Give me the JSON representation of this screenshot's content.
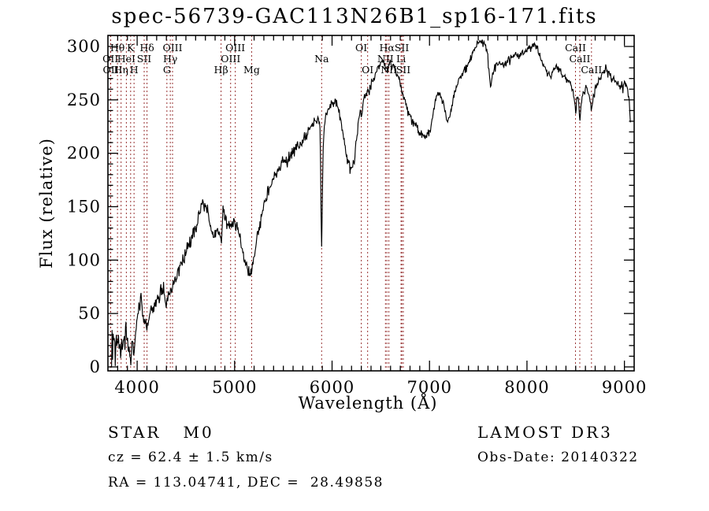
{
  "title": "spec-56739-GAC113N26B1_sp16-171.fits",
  "annotations": {
    "class_label": "STAR   M0",
    "cz": "cz = 62.4 ± 1.5 km/s",
    "radec": "RA = 113.04741, DEC =  28.49858",
    "survey": "LAMOST DR3",
    "obs_date": "Obs-Date: 20140322"
  },
  "chart_data": {
    "type": "line",
    "title": "spec-56739-GAC113N26B1_sp16-171.fits",
    "xlabel": "Wavelength (Å)",
    "ylabel": "Flux (relative)",
    "xlim": [
      3700,
      9100
    ],
    "ylim": [
      0,
      310
    ],
    "x_major_ticks": [
      4000,
      5000,
      6000,
      7000,
      8000,
      9000
    ],
    "x_minor_step": 100,
    "y_major_ticks": [
      0,
      50,
      100,
      150,
      200,
      250,
      300
    ],
    "y_minor_step": 10,
    "grid": false,
    "series_color": "#000000",
    "line_marker_color": "#993333",
    "spectral_lines": [
      {
        "label": "OII",
        "wavelength": 3726,
        "row": 2
      },
      {
        "label": "OII",
        "wavelength": 3729,
        "row": 3
      },
      {
        "label": "Hθ",
        "wavelength": 3798,
        "row": 1
      },
      {
        "label": "Hη",
        "wavelength": 3835,
        "row": 3
      },
      {
        "label": "HeI",
        "wavelength": 3889,
        "row": 2
      },
      {
        "label": "K",
        "wavelength": 3933,
        "row": 1
      },
      {
        "label": "H",
        "wavelength": 3968,
        "row": 3
      },
      {
        "label": "SII",
        "wavelength": 4072,
        "row": 2
      },
      {
        "label": "Hδ",
        "wavelength": 4101,
        "row": 1
      },
      {
        "label": "G",
        "wavelength": 4305,
        "row": 3
      },
      {
        "label": "Hγ",
        "wavelength": 4340,
        "row": 2
      },
      {
        "label": "OIII",
        "wavelength": 4363,
        "row": 1
      },
      {
        "label": "Hβ",
        "wavelength": 4861,
        "row": 3
      },
      {
        "label": "OIII",
        "wavelength": 4959,
        "row": 2
      },
      {
        "label": "OIII",
        "wavelength": 5007,
        "row": 1
      },
      {
        "label": "Mg",
        "wavelength": 5175,
        "row": 3
      },
      {
        "label": "Na",
        "wavelength": 5893,
        "row": 2
      },
      {
        "label": "OI",
        "wavelength": 6300,
        "row": 1
      },
      {
        "label": "OI",
        "wavelength": 6365,
        "row": 3
      },
      {
        "label": "NII",
        "wavelength": 6548,
        "row": 2
      },
      {
        "label": "Hα",
        "wavelength": 6563,
        "row": 1
      },
      {
        "label": "NII",
        "wavelength": 6583,
        "row": 3
      },
      {
        "label": "Li",
        "wavelength": 6708,
        "row": 2
      },
      {
        "label": "SII",
        "wavelength": 6716,
        "row": 1
      },
      {
        "label": "SII",
        "wavelength": 6731,
        "row": 3
      },
      {
        "label": "CaII",
        "wavelength": 8498,
        "row": 1
      },
      {
        "label": "CaII",
        "wavelength": 8542,
        "row": 2
      },
      {
        "label": "CaII",
        "wavelength": 8662,
        "row": 3
      }
    ],
    "noise_profile": [
      [
        3737,
        13
      ],
      [
        4200,
        10
      ],
      [
        4700,
        8
      ],
      [
        5300,
        7
      ],
      [
        5900,
        6
      ],
      [
        6600,
        5
      ],
      [
        7300,
        4
      ],
      [
        8200,
        4
      ],
      [
        9064,
        5
      ]
    ],
    "series": [
      {
        "name": "spectrum",
        "anchors": [
          [
            3737,
            2
          ],
          [
            3742,
            45
          ],
          [
            3747,
            10
          ],
          [
            3752,
            38
          ],
          [
            3757,
            15
          ],
          [
            3765,
            30
          ],
          [
            3775,
            10
          ],
          [
            3785,
            25
          ],
          [
            3795,
            18
          ],
          [
            3805,
            28
          ],
          [
            3815,
            14
          ],
          [
            3825,
            22
          ],
          [
            3835,
            10
          ],
          [
            3845,
            24
          ],
          [
            3855,
            18
          ],
          [
            3865,
            30
          ],
          [
            3875,
            24
          ],
          [
            3885,
            38
          ],
          [
            3895,
            26
          ],
          [
            3905,
            22
          ],
          [
            3915,
            14
          ],
          [
            3925,
            8
          ],
          [
            3935,
            6
          ],
          [
            3945,
            20
          ],
          [
            3955,
            24
          ],
          [
            3965,
            10
          ],
          [
            3975,
            22
          ],
          [
            3985,
            34
          ],
          [
            3995,
            44
          ],
          [
            4005,
            52
          ],
          [
            4015,
            56
          ],
          [
            4025,
            50
          ],
          [
            4035,
            60
          ],
          [
            4045,
            64
          ],
          [
            4055,
            54
          ],
          [
            4065,
            44
          ],
          [
            4075,
            38
          ],
          [
            4085,
            42
          ],
          [
            4095,
            36
          ],
          [
            4105,
            38
          ],
          [
            4115,
            46
          ],
          [
            4135,
            50
          ],
          [
            4155,
            54
          ],
          [
            4175,
            57
          ],
          [
            4200,
            60
          ],
          [
            4225,
            68
          ],
          [
            4250,
            72
          ],
          [
            4275,
            70
          ],
          [
            4300,
            54
          ],
          [
            4320,
            66
          ],
          [
            4340,
            70
          ],
          [
            4365,
            76
          ],
          [
            4390,
            83
          ],
          [
            4420,
            89
          ],
          [
            4450,
            95
          ],
          [
            4480,
            104
          ],
          [
            4510,
            111
          ],
          [
            4540,
            117
          ],
          [
            4570,
            121
          ],
          [
            4600,
            128
          ],
          [
            4625,
            140
          ],
          [
            4650,
            150
          ],
          [
            4670,
            153
          ],
          [
            4690,
            148
          ],
          [
            4710,
            150
          ],
          [
            4730,
            140
          ],
          [
            4750,
            132
          ],
          [
            4775,
            127
          ],
          [
            4800,
            124
          ],
          [
            4820,
            131
          ],
          [
            4845,
            128
          ],
          [
            4862,
            118
          ],
          [
            4880,
            150
          ],
          [
            4895,
            140
          ],
          [
            4915,
            133
          ],
          [
            4940,
            130
          ],
          [
            4960,
            134
          ],
          [
            4980,
            137
          ],
          [
            5000,
            141
          ],
          [
            5015,
            133
          ],
          [
            5035,
            127
          ],
          [
            5060,
            119
          ],
          [
            5080,
            110
          ],
          [
            5100,
            99
          ],
          [
            5125,
            94
          ],
          [
            5150,
            90
          ],
          [
            5170,
            86
          ],
          [
            5185,
            93
          ],
          [
            5205,
            106
          ],
          [
            5225,
            119
          ],
          [
            5250,
            130
          ],
          [
            5275,
            143
          ],
          [
            5300,
            152
          ],
          [
            5330,
            160
          ],
          [
            5360,
            168
          ],
          [
            5390,
            174
          ],
          [
            5420,
            180
          ],
          [
            5450,
            185
          ],
          [
            5480,
            190
          ],
          [
            5510,
            194
          ],
          [
            5540,
            192
          ],
          [
            5570,
            198
          ],
          [
            5600,
            202
          ],
          [
            5630,
            204
          ],
          [
            5660,
            208
          ],
          [
            5700,
            212
          ],
          [
            5740,
            217
          ],
          [
            5780,
            223
          ],
          [
            5820,
            229
          ],
          [
            5860,
            231
          ],
          [
            5878,
            222
          ],
          [
            5888,
            140
          ],
          [
            5894,
            108
          ],
          [
            5901,
            165
          ],
          [
            5912,
            218
          ],
          [
            5935,
            233
          ],
          [
            5960,
            239
          ],
          [
            5985,
            244
          ],
          [
            6010,
            246
          ],
          [
            6035,
            248
          ],
          [
            6060,
            243
          ],
          [
            6085,
            232
          ],
          [
            6110,
            220
          ],
          [
            6135,
            206
          ],
          [
            6160,
            194
          ],
          [
            6185,
            185
          ],
          [
            6210,
            187
          ],
          [
            6235,
            196
          ],
          [
            6260,
            222
          ],
          [
            6285,
            240
          ],
          [
            6300,
            236
          ],
          [
            6320,
            248
          ],
          [
            6350,
            255
          ],
          [
            6380,
            260
          ],
          [
            6410,
            266
          ],
          [
            6440,
            271
          ],
          [
            6470,
            279
          ],
          [
            6500,
            285
          ],
          [
            6525,
            284
          ],
          [
            6550,
            281
          ],
          [
            6565,
            278
          ],
          [
            6585,
            284
          ],
          [
            6605,
            285
          ],
          [
            6630,
            281
          ],
          [
            6660,
            275
          ],
          [
            6690,
            269
          ],
          [
            6715,
            260
          ],
          [
            6740,
            251
          ],
          [
            6770,
            244
          ],
          [
            6800,
            237
          ],
          [
            6830,
            231
          ],
          [
            6860,
            226
          ],
          [
            6890,
            221
          ],
          [
            6920,
            218
          ],
          [
            6950,
            216
          ],
          [
            6980,
            219
          ],
          [
            7005,
            223
          ],
          [
            7030,
            233
          ],
          [
            7055,
            246
          ],
          [
            7080,
            254
          ],
          [
            7105,
            257
          ],
          [
            7130,
            250
          ],
          [
            7160,
            241
          ],
          [
            7185,
            229
          ],
          [
            7210,
            236
          ],
          [
            7240,
            250
          ],
          [
            7270,
            260
          ],
          [
            7300,
            268
          ],
          [
            7330,
            273
          ],
          [
            7360,
            278
          ],
          [
            7390,
            282
          ],
          [
            7420,
            289
          ],
          [
            7450,
            295
          ],
          [
            7480,
            300
          ],
          [
            7510,
            304
          ],
          [
            7540,
            306
          ],
          [
            7565,
            303
          ],
          [
            7590,
            297
          ],
          [
            7612,
            278
          ],
          [
            7625,
            263
          ],
          [
            7640,
            271
          ],
          [
            7660,
            278
          ],
          [
            7685,
            283
          ],
          [
            7710,
            286
          ],
          [
            7735,
            286
          ],
          [
            7760,
            281
          ],
          [
            7785,
            284
          ],
          [
            7810,
            288
          ],
          [
            7835,
            289
          ],
          [
            7860,
            291
          ],
          [
            7885,
            293
          ],
          [
            7910,
            291
          ],
          [
            7935,
            293
          ],
          [
            7960,
            295
          ],
          [
            7985,
            297
          ],
          [
            8010,
            298
          ],
          [
            8035,
            300
          ],
          [
            8060,
            302
          ],
          [
            8085,
            301
          ],
          [
            8110,
            298
          ],
          [
            8135,
            290
          ],
          [
            8160,
            284
          ],
          [
            8185,
            280
          ],
          [
            8210,
            276
          ],
          [
            8235,
            273
          ],
          [
            8260,
            276
          ],
          [
            8285,
            280
          ],
          [
            8310,
            281
          ],
          [
            8335,
            278
          ],
          [
            8360,
            274
          ],
          [
            8385,
            271
          ],
          [
            8410,
            268
          ],
          [
            8435,
            265
          ],
          [
            8460,
            262
          ],
          [
            8485,
            255
          ],
          [
            8500,
            238
          ],
          [
            8512,
            252
          ],
          [
            8530,
            249
          ],
          [
            8543,
            226
          ],
          [
            8555,
            247
          ],
          [
            8575,
            257
          ],
          [
            8595,
            261
          ],
          [
            8615,
            259
          ],
          [
            8640,
            254
          ],
          [
            8663,
            241
          ],
          [
            8680,
            254
          ],
          [
            8705,
            262
          ],
          [
            8730,
            266
          ],
          [
            8755,
            271
          ],
          [
            8780,
            275
          ],
          [
            8805,
            280
          ],
          [
            8830,
            277
          ],
          [
            8855,
            273
          ],
          [
            8880,
            270
          ],
          [
            8905,
            268
          ],
          [
            8930,
            266
          ],
          [
            8955,
            263
          ],
          [
            8980,
            263
          ],
          [
            9005,
            265
          ],
          [
            9030,
            260
          ],
          [
            9050,
            248
          ],
          [
            9064,
            226
          ]
        ]
      }
    ]
  }
}
